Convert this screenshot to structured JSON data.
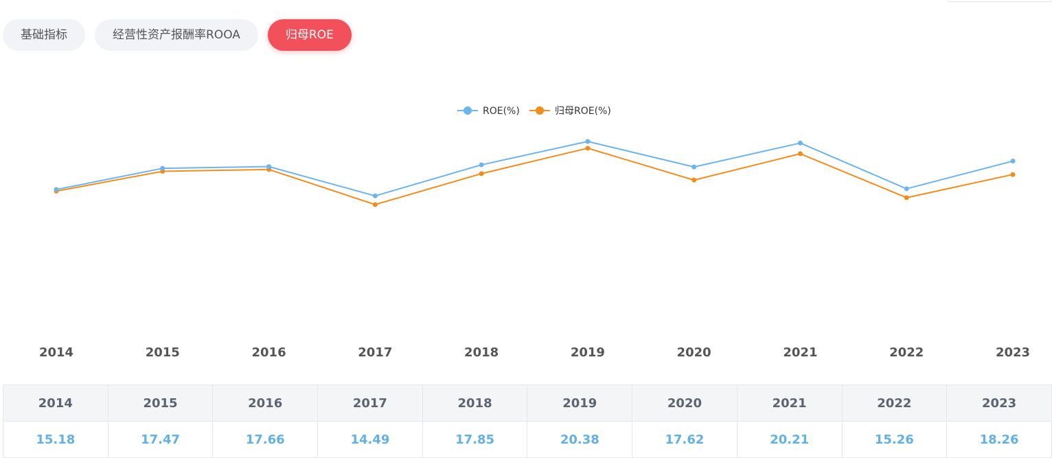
{
  "tabs": [
    {
      "label": "基础指标",
      "active": false
    },
    {
      "label": "经营性资产报酬率ROOA",
      "active": false
    },
    {
      "label": "归母ROE",
      "active": true
    }
  ],
  "colors": {
    "roe": "#6cb4ec",
    "parent_roe": "#f28c1c",
    "active_tab": "#f2505a"
  },
  "chart_data": {
    "type": "line",
    "x": [
      "2014",
      "2015",
      "2016",
      "2017",
      "2018",
      "2019",
      "2020",
      "2021",
      "2022",
      "2023"
    ],
    "series": [
      {
        "name": "ROE(%)",
        "color": "#6cb4ec",
        "values": [
          15.18,
          17.47,
          17.66,
          14.49,
          17.85,
          20.38,
          17.62,
          20.21,
          15.26,
          18.26
        ]
      },
      {
        "name": "归母ROE(%)",
        "color": "#f28c1c",
        "values": [
          15.0,
          17.15,
          17.35,
          13.55,
          16.9,
          19.65,
          16.2,
          19.05,
          14.3,
          16.8
        ]
      }
    ],
    "legend_position": "top-center",
    "grid": false
  },
  "table": {
    "headers": [
      "2014",
      "2015",
      "2016",
      "2017",
      "2018",
      "2019",
      "2020",
      "2021",
      "2022",
      "2023"
    ],
    "values": [
      "15.18",
      "17.47",
      "17.66",
      "14.49",
      "17.85",
      "20.38",
      "17.62",
      "20.21",
      "15.26",
      "18.26"
    ]
  }
}
